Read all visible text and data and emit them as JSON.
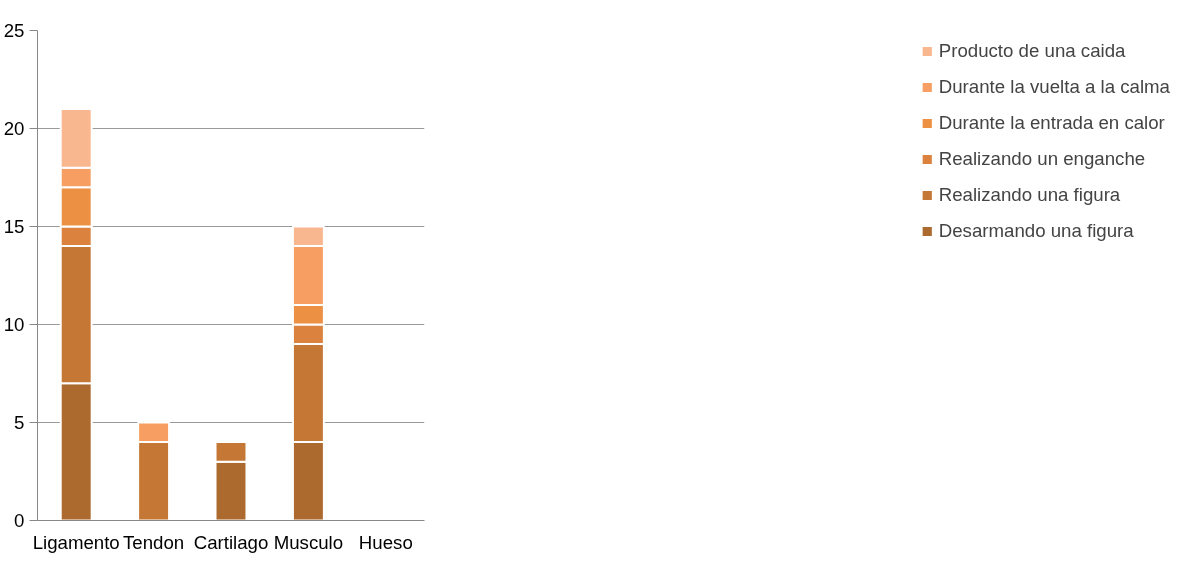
{
  "chart_data": {
    "type": "bar",
    "stacked": true,
    "categories": [
      "Ligamento",
      "Tendon",
      "Cartilago",
      "Musculo",
      "Hueso"
    ],
    "series": [
      {
        "name": "Desarmando una figura",
        "color": "#ad6a2e",
        "values": [
          7,
          null,
          3,
          4,
          null
        ]
      },
      {
        "name": "Realizando una figura",
        "color": "#c57736",
        "values": [
          7,
          4,
          1,
          5,
          null
        ]
      },
      {
        "name": "Realizando un enganche",
        "color": "#db823f",
        "values": [
          1,
          null,
          null,
          1,
          null
        ]
      },
      {
        "name": "Durante la entrada en calor",
        "color": "#ec9044",
        "values": [
          2,
          null,
          null,
          1,
          null
        ]
      },
      {
        "name": "Durante la vuelta a la calma",
        "color": "#f79f62",
        "values": [
          1,
          1,
          null,
          3,
          null
        ]
      },
      {
        "name": "Producto de una caida",
        "color": "#f9b790",
        "values": [
          3,
          null,
          null,
          1,
          null
        ]
      }
    ],
    "ylim": [
      0,
      25
    ],
    "yticks": [
      0,
      5,
      10,
      15,
      20,
      25
    ],
    "grid": "y",
    "legend": "right"
  }
}
